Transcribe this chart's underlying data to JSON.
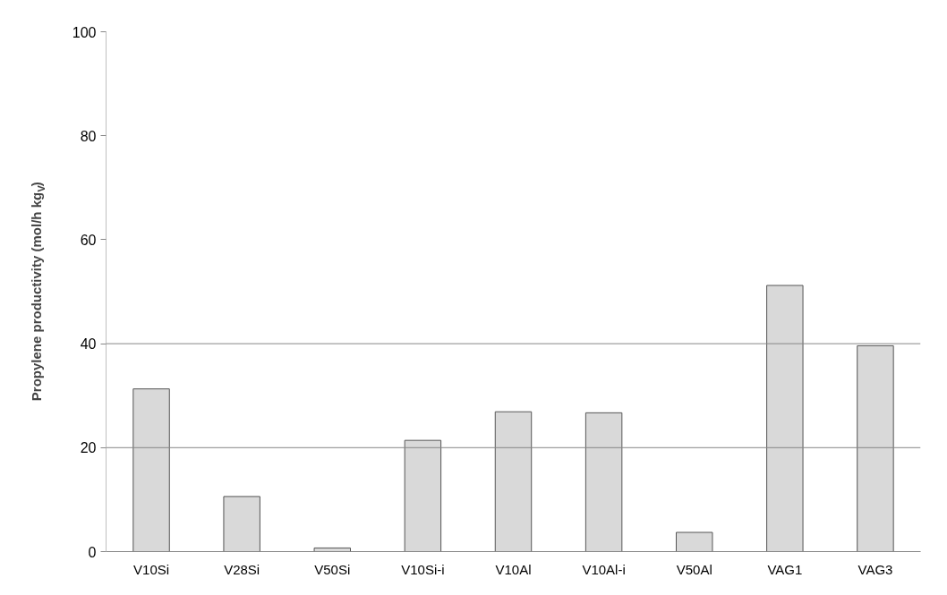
{
  "chart_data": {
    "type": "bar",
    "ylabel": "Propylene productivity (mol/h kg$_{V}$)",
    "categories": [
      "V10Si",
      "V28Si",
      "V50Si",
      "V10Si-i",
      "V10Al",
      "V10Al-i",
      "V50Al",
      "VAG1",
      "VAG3"
    ],
    "values": [
      31.3,
      10.6,
      0.7,
      21.4,
      26.9,
      26.7,
      3.7,
      51.2,
      39.6
    ],
    "color": "#d9d9d9",
    "ylim": [
      0,
      100
    ],
    "yticks": [
      0,
      20,
      40,
      60,
      80,
      100
    ],
    "grid": false,
    "ref_lines": [
      {
        "axis": "y",
        "value": 20,
        "color": "#868686"
      },
      {
        "axis": "y",
        "value": 40,
        "color": "#868686"
      }
    ]
  }
}
